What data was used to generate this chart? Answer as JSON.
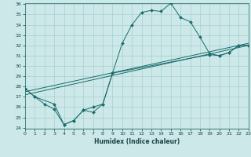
{
  "xlabel": "Humidex (Indice chaleur)",
  "xlim": [
    0,
    23
  ],
  "ylim": [
    24,
    36
  ],
  "yticks": [
    24,
    25,
    26,
    27,
    28,
    29,
    30,
    31,
    32,
    33,
    34,
    35,
    36
  ],
  "xticks": [
    0,
    1,
    2,
    3,
    4,
    5,
    6,
    7,
    8,
    9,
    10,
    11,
    12,
    13,
    14,
    15,
    16,
    17,
    18,
    19,
    20,
    21,
    22,
    23
  ],
  "line_color": "#1a6b6b",
  "bg_color": "#cce8e8",
  "grid_color": "#aacfcf",
  "series": [
    {
      "x": [
        0,
        1,
        2,
        3,
        4,
        5,
        6,
        7,
        8,
        9,
        10,
        11,
        12,
        13,
        14,
        15,
        16,
        17,
        18,
        19,
        20,
        21,
        22,
        23
      ],
      "y": [
        27.8,
        27.0,
        26.3,
        25.8,
        24.3,
        24.7,
        25.7,
        25.5,
        26.3,
        29.3,
        32.2,
        34.0,
        35.2,
        35.4,
        35.3,
        36.1,
        34.7,
        34.3,
        32.8,
        31.2,
        31.0,
        31.3,
        32.0,
        32.0
      ],
      "has_markers": true
    },
    {
      "x": [
        0,
        1,
        3,
        4,
        5,
        6,
        7,
        8,
        9,
        19,
        20,
        21,
        22,
        23
      ],
      "y": [
        27.8,
        27.0,
        26.3,
        24.3,
        24.7,
        25.7,
        26.0,
        26.3,
        29.3,
        31.1,
        31.0,
        31.3,
        32.0,
        32.0
      ],
      "has_markers": true
    },
    {
      "x": [
        0,
        23
      ],
      "y": [
        27.5,
        32.2
      ],
      "has_markers": false
    },
    {
      "x": [
        0,
        23
      ],
      "y": [
        27.2,
        32.0
      ],
      "has_markers": false
    }
  ]
}
